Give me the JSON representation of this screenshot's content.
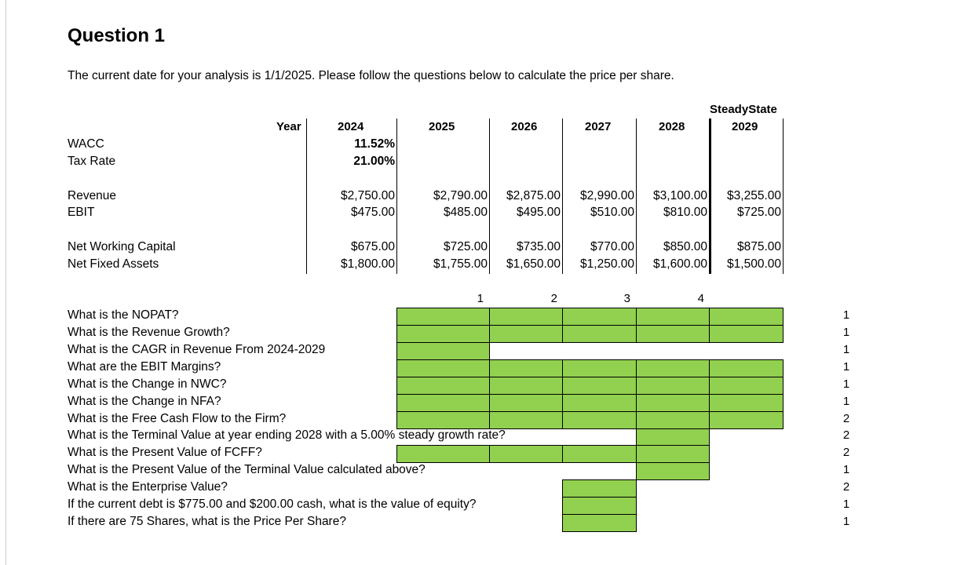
{
  "title": "Question 1",
  "intro": "The current date for your analysis is 1/1/2025. Please follow the questions below to calculate the price per share.",
  "header": {
    "year_label": "Year",
    "steady_state_label": "SteadyState",
    "years": [
      "2024",
      "2025",
      "2026",
      "2027",
      "2028",
      "2029"
    ]
  },
  "rows": {
    "wacc": {
      "label": "WACC",
      "value": "11.52%"
    },
    "tax_rate": {
      "label": "Tax Rate",
      "value": "21.00%"
    },
    "revenue": {
      "label": "Revenue",
      "values": [
        "$2,750.00",
        "$2,790.00",
        "$2,875.00",
        "$2,990.00",
        "$3,100.00",
        "$3,255.00"
      ]
    },
    "ebit": {
      "label": "EBIT",
      "values": [
        "$475.00",
        "$485.00",
        "$495.00",
        "$510.00",
        "$810.00",
        "$725.00"
      ]
    },
    "nwc": {
      "label": "Net Working Capital",
      "values": [
        "$675.00",
        "$725.00",
        "$735.00",
        "$770.00",
        "$850.00",
        "$875.00"
      ]
    },
    "nfa": {
      "label": "Net Fixed Assets",
      "values": [
        "$1,800.00",
        "$1,755.00",
        "$1,650.00",
        "$1,250.00",
        "$1,600.00",
        "$1,500.00"
      ]
    }
  },
  "period_numbers": [
    "1",
    "2",
    "3",
    "4"
  ],
  "questions": [
    {
      "text": "What is the NOPAT?",
      "points": "1"
    },
    {
      "text": "What is the Revenue Growth?",
      "points": "1"
    },
    {
      "text": "What is the CAGR in Revenue From 2024-2029",
      "points": "1"
    },
    {
      "text": "What are the EBIT Margins?",
      "points": "1"
    },
    {
      "text": "What is the Change in NWC?",
      "points": "1"
    },
    {
      "text": "What is the Change in NFA?",
      "points": "1"
    },
    {
      "text": "What is the Free Cash Flow to the Firm?",
      "points": "2"
    },
    {
      "text": "What is the Terminal Value at year ending 2028 with a 5.00% steady growth rate?",
      "points": "2"
    },
    {
      "text": "What is the Present Value of FCFF?",
      "points": "2"
    },
    {
      "text": "What is the Present Value of the Terminal Value calculated above?",
      "points": "1"
    },
    {
      "text": "What is the Enterprise Value?",
      "points": "2"
    },
    {
      "text": "If the current debt is $775.00 and $200.00 cash, what is the value of equity?",
      "points": "1"
    },
    {
      "text": "If there are 75 Shares, what is the Price Per Share?",
      "points": "1"
    }
  ],
  "colors": {
    "answer_fill": "#92d050"
  }
}
